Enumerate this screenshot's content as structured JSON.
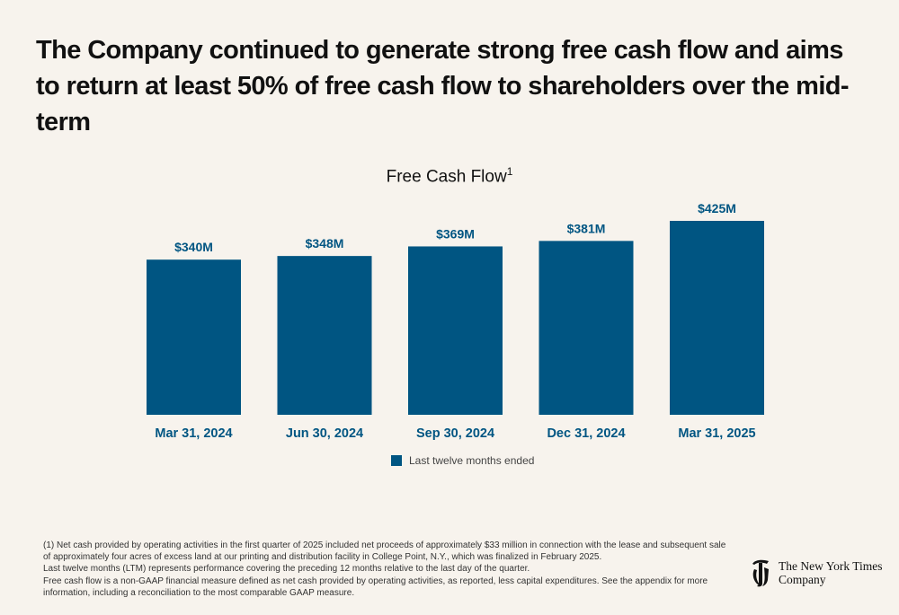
{
  "headline": "The Company continued to generate strong free cash flow and aims to return at least 50% of free cash flow to shareholders over the mid-term",
  "colors": {
    "bar": "#005582",
    "label": "#005582",
    "background": "#f7f3ed"
  },
  "chart_data": {
    "type": "bar",
    "title": "Free Cash Flow",
    "title_superscript": "1",
    "categories": [
      "Mar 31, 2024",
      "Jun 30, 2024",
      "Sep 30, 2024",
      "Dec 31, 2024",
      "Mar 31, 2025"
    ],
    "series": [
      {
        "name": "Last twelve months ended",
        "values": [
          340,
          348,
          369,
          381,
          425
        ]
      }
    ],
    "data_labels": [
      "$340M",
      "$348M",
      "$369M",
      "$381M",
      "$425M"
    ],
    "unit": "$M",
    "xlabel": "",
    "ylabel": "",
    "ylim": [
      0,
      425
    ],
    "grid": false,
    "legend_position": "bottom-center"
  },
  "footnotes": [
    "(1) Net cash provided by operating activities in the first quarter of 2025 included net proceeds of approximately $33 million in connection with the lease and subsequent sale of approximately four acres of excess land at our printing and distribution facility in College Point, N.Y., which was finalized in February 2025.",
    "Last twelve months (LTM) represents performance covering the preceding 12 months relative to the last day of the quarter.",
    "Free cash flow is a non-GAAP financial measure defined as net cash provided by operating activities, as reported, less capital expenditures. See the appendix for more information, including a reconciliation to the most comparable GAAP measure."
  ],
  "logo": {
    "line1": "The New York Times",
    "line2": "Company",
    "icon": "nyt-t-logo-icon"
  }
}
